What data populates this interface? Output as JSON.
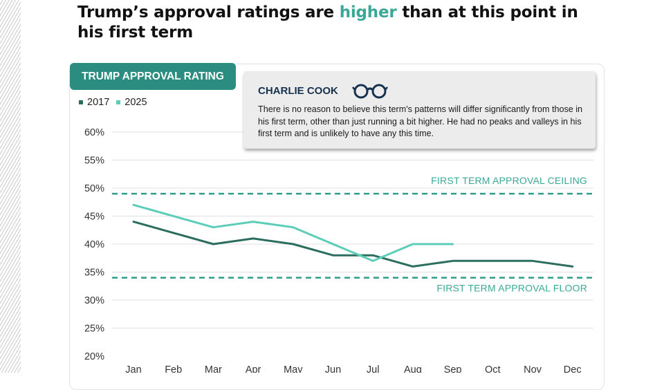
{
  "headline": {
    "part1": "Trump’s approval ratings are ",
    "highlight": "higher",
    "part2": " than at this point in his first term"
  },
  "colors": {
    "accent_teal": "#3aa896",
    "tag_bg": "#2a8d7f",
    "series_2017": "#2b6d5e",
    "series_2025": "#5ccdb8",
    "reference_line": "#2f9c8b",
    "gridline": "#e0e0e0"
  },
  "panel": {
    "tag_label": "TRUMP APPROVAL RATING"
  },
  "legend": [
    {
      "label": "2017",
      "color": "#2b6d5e"
    },
    {
      "label": "2025",
      "color": "#5ccdb8"
    }
  ],
  "quote": {
    "author": "CHARLIE COOK",
    "icon": "glasses-icon",
    "text": "There is no reason to believe this term's patterns will differ significantly from those in his first term, other than just running a bit higher. He had no peaks and valleys in his first term and is unlikely to have any this time."
  },
  "chart_data": {
    "type": "line",
    "title": "TRUMP APPROVAL RATING",
    "xlabel": "",
    "ylabel": "",
    "categories": [
      "Jan",
      "Feb",
      "Mar",
      "Apr",
      "May",
      "Jun",
      "Jul",
      "Aug",
      "Sep",
      "Oct",
      "Nov",
      "Dec"
    ],
    "ylim": [
      20,
      60
    ],
    "yticks": [
      20,
      25,
      30,
      35,
      40,
      45,
      50,
      55,
      60
    ],
    "ytick_format": "percent",
    "grid": true,
    "legend_position": "top-left",
    "series": [
      {
        "name": "2017",
        "color": "#2b6d5e",
        "values": [
          44,
          42,
          40,
          41,
          40,
          38,
          38,
          36,
          37,
          37,
          37,
          36
        ]
      },
      {
        "name": "2025",
        "color": "#5ccdb8",
        "values": [
          47,
          45,
          43,
          44,
          43,
          40,
          37,
          40,
          40,
          null,
          null,
          null
        ]
      }
    ],
    "reference_lines": [
      {
        "label": "FIRST TERM APPROVAL CEILING",
        "value": 49,
        "style": "dashed",
        "label_position": "above"
      },
      {
        "label": "FIRST TERM APPROVAL FLOOR",
        "value": 34,
        "style": "dashed",
        "label_position": "below"
      }
    ]
  }
}
